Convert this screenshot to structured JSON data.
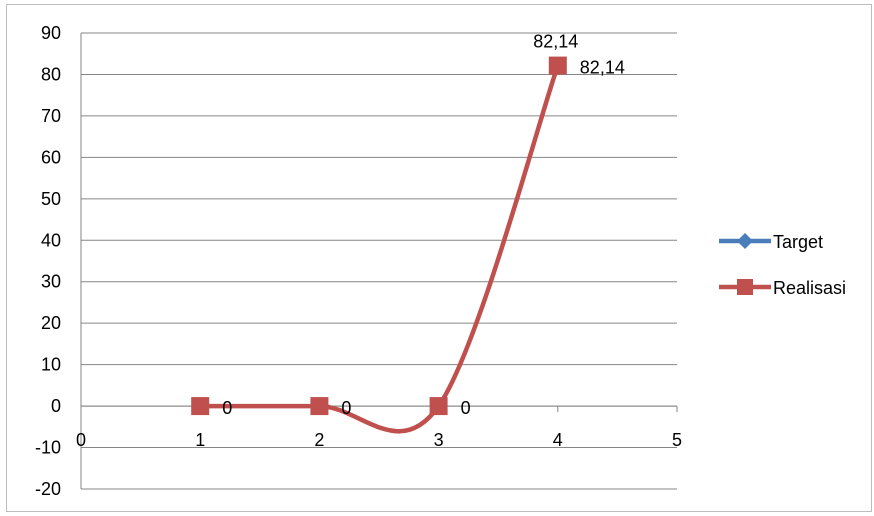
{
  "chart_data": {
    "type": "line",
    "x_ticks": [
      "0",
      "1",
      "2",
      "3",
      "4",
      "5"
    ],
    "y_ticks": [
      "90",
      "80",
      "70",
      "60",
      "50",
      "40",
      "30",
      "20",
      "10",
      "0",
      "-10",
      "-20"
    ],
    "xlim": [
      0,
      5
    ],
    "ylim": [
      -20,
      90
    ],
    "grid": true,
    "legend_position": "right",
    "smoothed": true,
    "series": [
      {
        "name": "Target",
        "color": "#4a7ebb",
        "marker": "diamond",
        "x": [],
        "values": []
      },
      {
        "name": "Realisasi",
        "color": "#c0504d",
        "marker": "square",
        "x": [
          1,
          2,
          3,
          4
        ],
        "values": [
          0,
          0,
          0,
          82.14
        ],
        "data_labels": [
          "0",
          "0",
          "0",
          "82,14"
        ]
      }
    ],
    "extra_labels": [
      {
        "x": 4,
        "y": 82.14,
        "text": "82,14"
      }
    ]
  }
}
